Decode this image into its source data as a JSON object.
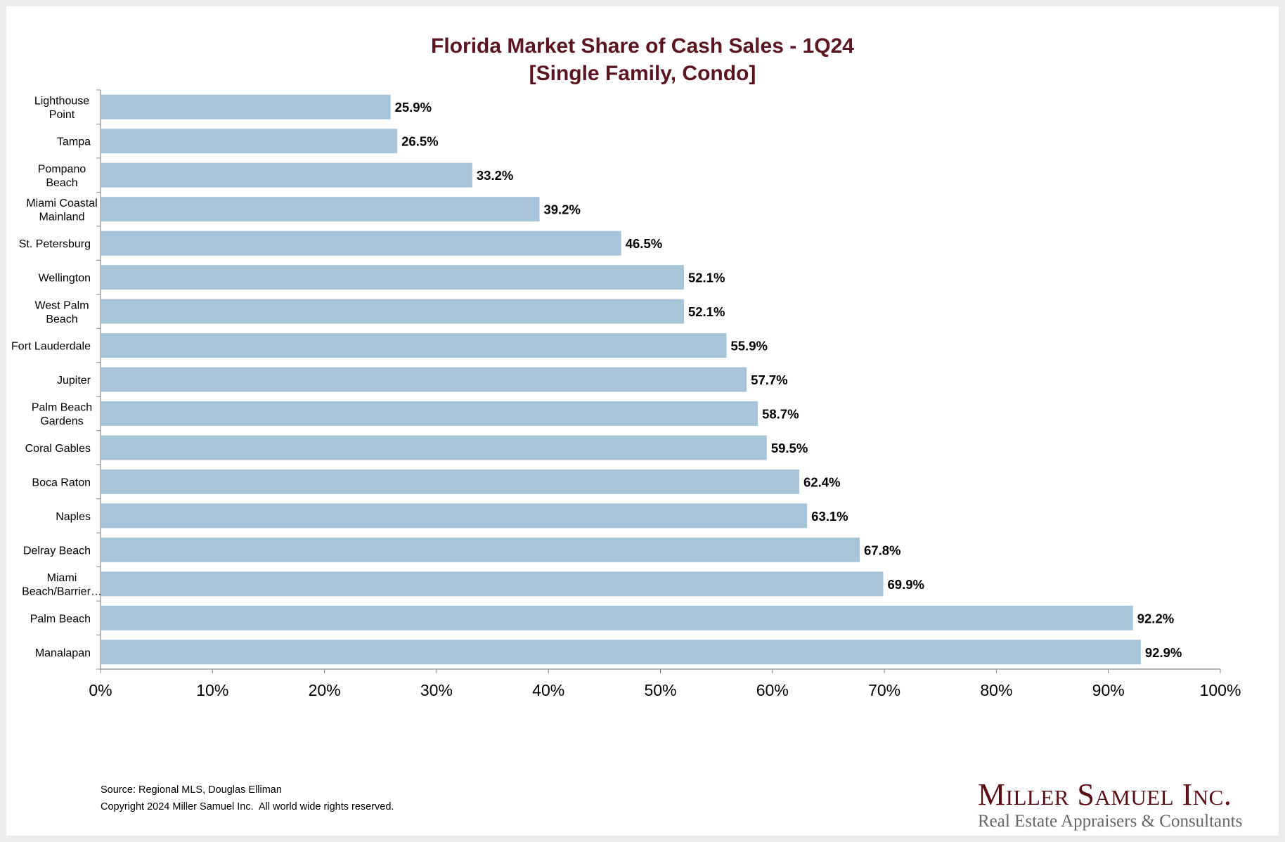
{
  "chart_data": {
    "type": "bar",
    "orientation": "horizontal",
    "title": "Florida Market Share of Cash Sales - 1Q24",
    "subtitle": "[Single Family, Condo]",
    "categories": [
      "Lighthouse Point",
      "Tampa",
      "Pompano Beach",
      "Miami Coastal Mainland",
      "St. Petersburg",
      "Wellington",
      "West Palm Beach",
      "Fort Lauderdale",
      "Jupiter",
      "Palm Beach Gardens",
      "Coral Gables",
      "Boca Raton",
      "Naples",
      "Delray Beach",
      "Miami Beach/Barrier…",
      "Palm Beach",
      "Manalapan"
    ],
    "category_lines": [
      [
        "Lighthouse",
        "Point"
      ],
      [
        "Tampa"
      ],
      [
        "Pompano",
        "Beach"
      ],
      [
        "Miami Coastal",
        "Mainland"
      ],
      [
        "St. Petersburg"
      ],
      [
        "Wellington"
      ],
      [
        "West Palm",
        "Beach"
      ],
      [
        "Fort Lauderdale"
      ],
      [
        "Jupiter"
      ],
      [
        "Palm Beach",
        "Gardens"
      ],
      [
        "Coral Gables"
      ],
      [
        "Boca Raton"
      ],
      [
        "Naples"
      ],
      [
        "Delray Beach"
      ],
      [
        "Miami",
        "Beach/Barrier…"
      ],
      [
        "Palm Beach"
      ],
      [
        "Manalapan"
      ]
    ],
    "values": [
      25.9,
      26.5,
      33.2,
      39.2,
      46.5,
      52.1,
      52.1,
      55.9,
      57.7,
      58.7,
      59.5,
      62.4,
      63.1,
      67.8,
      69.9,
      92.2,
      92.9
    ],
    "data_labels": [
      "25.9%",
      "26.5%",
      "33.2%",
      "39.2%",
      "46.5%",
      "52.1%",
      "52.1%",
      "55.9%",
      "57.7%",
      "58.7%",
      "59.5%",
      "62.4%",
      "63.1%",
      "67.8%",
      "69.9%",
      "92.2%",
      "92.9%"
    ],
    "xlim": [
      0,
      100
    ],
    "x_ticks": [
      "0%",
      "10%",
      "20%",
      "30%",
      "40%",
      "50%",
      "60%",
      "70%",
      "80%",
      "90%",
      "100%"
    ],
    "xlabel": "",
    "ylabel": "",
    "grid": false,
    "legend": "none",
    "colors": {
      "bar": "#a8c4d8",
      "title": "#5a1520",
      "axis": "#888888"
    }
  },
  "footer": {
    "source": "Source: Regional MLS, Douglas Elliman",
    "copyright": "Copyright 2024 Miller Samuel Inc.  All world wide rights reserved."
  },
  "logo": {
    "name": "Miller Samuel Inc.",
    "tagline": "Real Estate Appraisers & Consultants"
  }
}
